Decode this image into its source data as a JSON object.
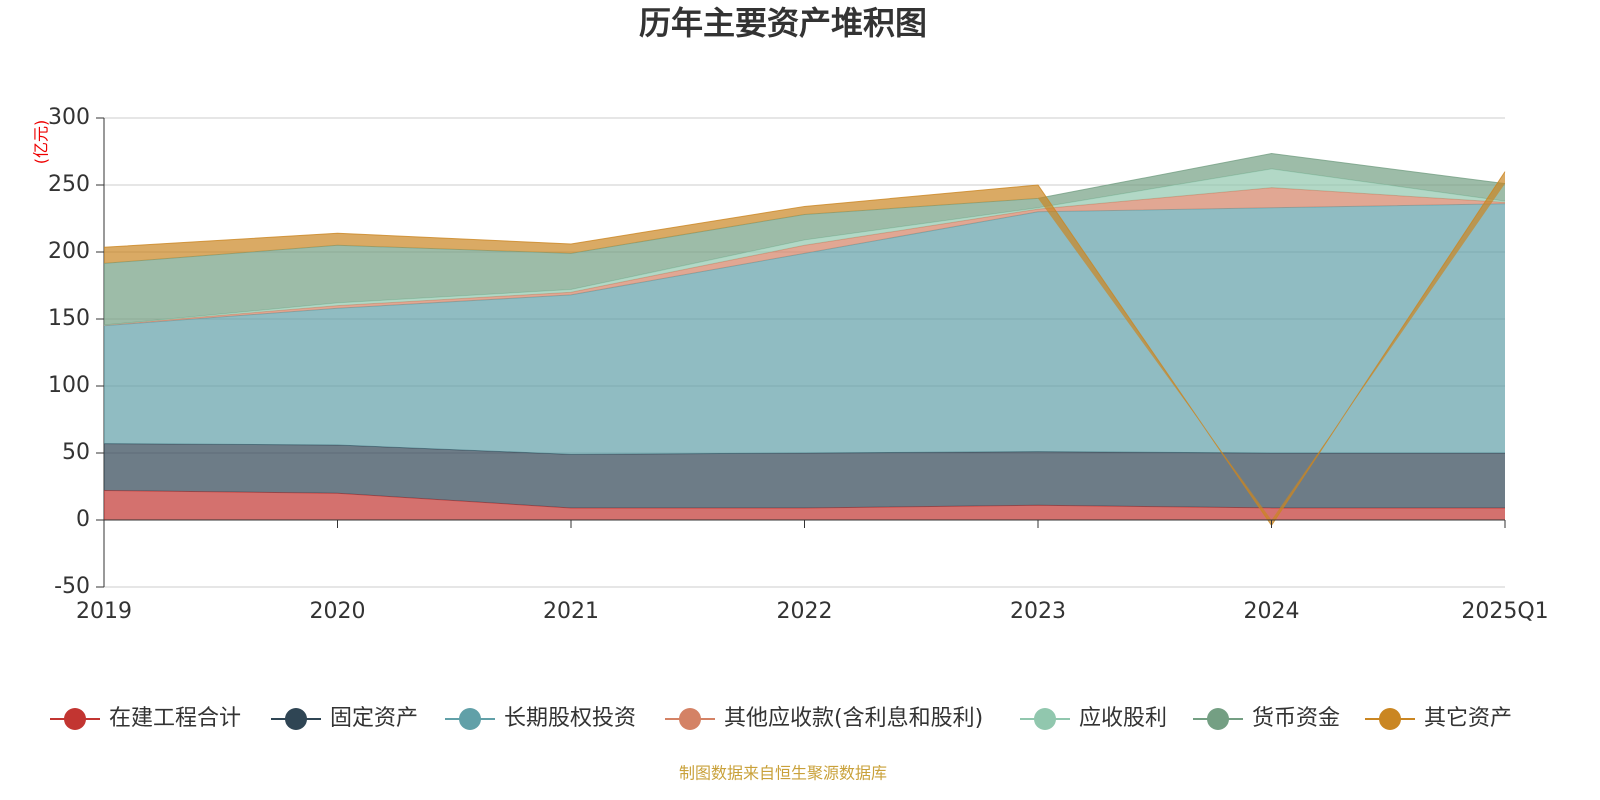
{
  "chart_data": {
    "type": "stacked_area",
    "title": "历年主要资产堆积图",
    "y_unit": "(亿元)",
    "source": "制图数据来自恒生聚源数据库",
    "categories": [
      "2019",
      "2020",
      "2021",
      "2022",
      "2023",
      "2024",
      "2025Q1"
    ],
    "ylim": [
      -50,
      300
    ],
    "yticks": [
      -50,
      0,
      50,
      100,
      150,
      200,
      250,
      300
    ],
    "grid": true,
    "series": [
      {
        "name": "在建工程合计",
        "color": "#c23531",
        "values": [
          22,
          20,
          9,
          9,
          11,
          9,
          9
        ]
      },
      {
        "name": "固定资产",
        "color": "#2f4554",
        "values": [
          35,
          36,
          40,
          41,
          40,
          41,
          41
        ]
      },
      {
        "name": "长期股权投资",
        "color": "#61a0a8",
        "values": [
          88,
          102,
          119,
          149,
          179,
          183,
          186
        ]
      },
      {
        "name": "其他应收款(含利息和股利)",
        "color": "#d48265",
        "values": [
          0.5,
          2,
          2,
          6,
          2,
          15,
          1
        ]
      },
      {
        "name": "应收股利",
        "color": "#91c7ae",
        "values": [
          0,
          2,
          2,
          4,
          1,
          14,
          1
        ]
      },
      {
        "name": "货币资金",
        "color": "#749f83",
        "values": [
          46,
          43,
          27,
          19,
          7,
          11.5,
          13
        ]
      },
      {
        "name": "其它资产",
        "color": "#ca8622",
        "values": [
          12,
          9,
          7,
          6,
          10,
          -4,
          9
        ]
      }
    ]
  }
}
